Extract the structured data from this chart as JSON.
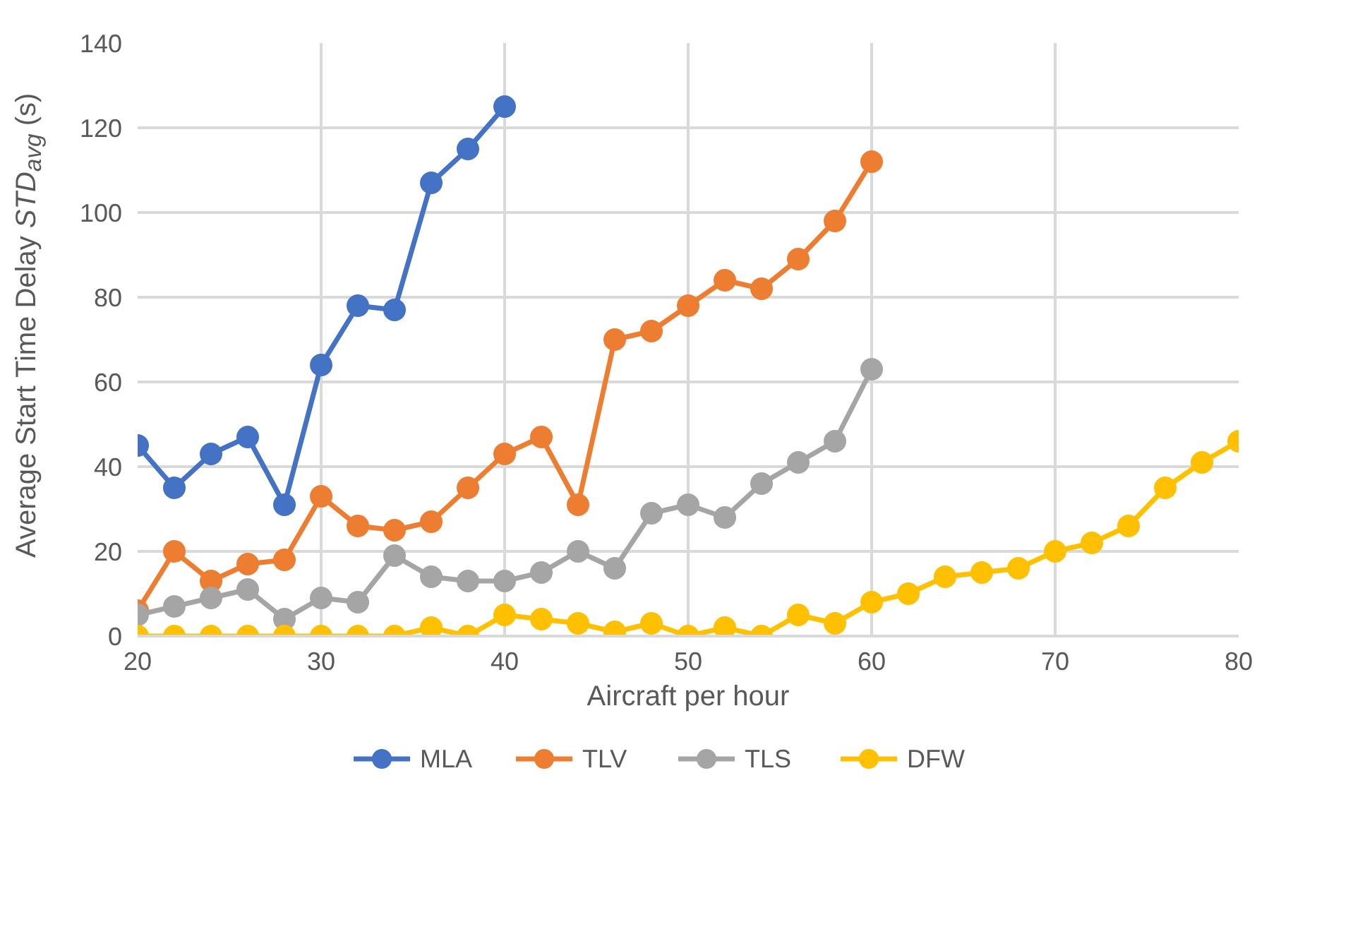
{
  "chart_data": {
    "type": "line",
    "xlabel": "Aircraft per hour",
    "ylabel": "Average Start Time Delay STD$_{avg}$ (s)",
    "xlim": [
      20,
      80
    ],
    "xticks": [
      20,
      30,
      40,
      50,
      60,
      70,
      80
    ],
    "ylim": [
      0,
      140
    ],
    "yticks": [
      0,
      20,
      40,
      60,
      80,
      100,
      120,
      140
    ],
    "grid": true,
    "legend": "bottom",
    "marker": "circle",
    "line_style": "solid",
    "series": [
      {
        "name": "MLA",
        "color": "#4472c4",
        "x": [
          20,
          22,
          24,
          26,
          28,
          30,
          32,
          34,
          36,
          38,
          40
        ],
        "values": [
          45,
          35,
          43,
          47,
          31,
          64,
          78,
          77,
          107,
          115,
          125
        ]
      },
      {
        "name": "TLV",
        "color": "#ed7d31",
        "x": [
          20,
          22,
          24,
          26,
          28,
          30,
          32,
          34,
          36,
          38,
          40,
          42,
          44,
          46,
          48,
          50,
          52,
          54,
          56,
          58,
          60
        ],
        "values": [
          6,
          20,
          13,
          17,
          18,
          33,
          26,
          25,
          27,
          35,
          43,
          47,
          31,
          70,
          72,
          78,
          84,
          82,
          89,
          98,
          112
        ]
      },
      {
        "name": "TLS",
        "color": "#a5a5a5",
        "x": [
          20,
          22,
          24,
          26,
          28,
          30,
          32,
          34,
          36,
          38,
          40,
          42,
          44,
          46,
          48,
          50,
          52,
          54,
          56,
          58,
          60
        ],
        "values": [
          5,
          7,
          9,
          11,
          4,
          9,
          8,
          19,
          14,
          13,
          13,
          15,
          20,
          16,
          29,
          31,
          28,
          36,
          41,
          46,
          63
        ]
      },
      {
        "name": "DFW",
        "color": "#ffc000",
        "x": [
          20,
          22,
          24,
          26,
          28,
          30,
          32,
          34,
          36,
          38,
          40,
          42,
          44,
          46,
          48,
          50,
          52,
          54,
          56,
          58,
          60,
          62,
          64,
          66,
          68,
          70,
          72,
          74,
          76,
          78,
          80
        ],
        "values": [
          0,
          0,
          0,
          0,
          0,
          0,
          0,
          0,
          2,
          0,
          5,
          4,
          3,
          1,
          3,
          0,
          2,
          0,
          5,
          3,
          8,
          10,
          14,
          15,
          16,
          20,
          22,
          26,
          35,
          41,
          46
        ]
      }
    ]
  }
}
